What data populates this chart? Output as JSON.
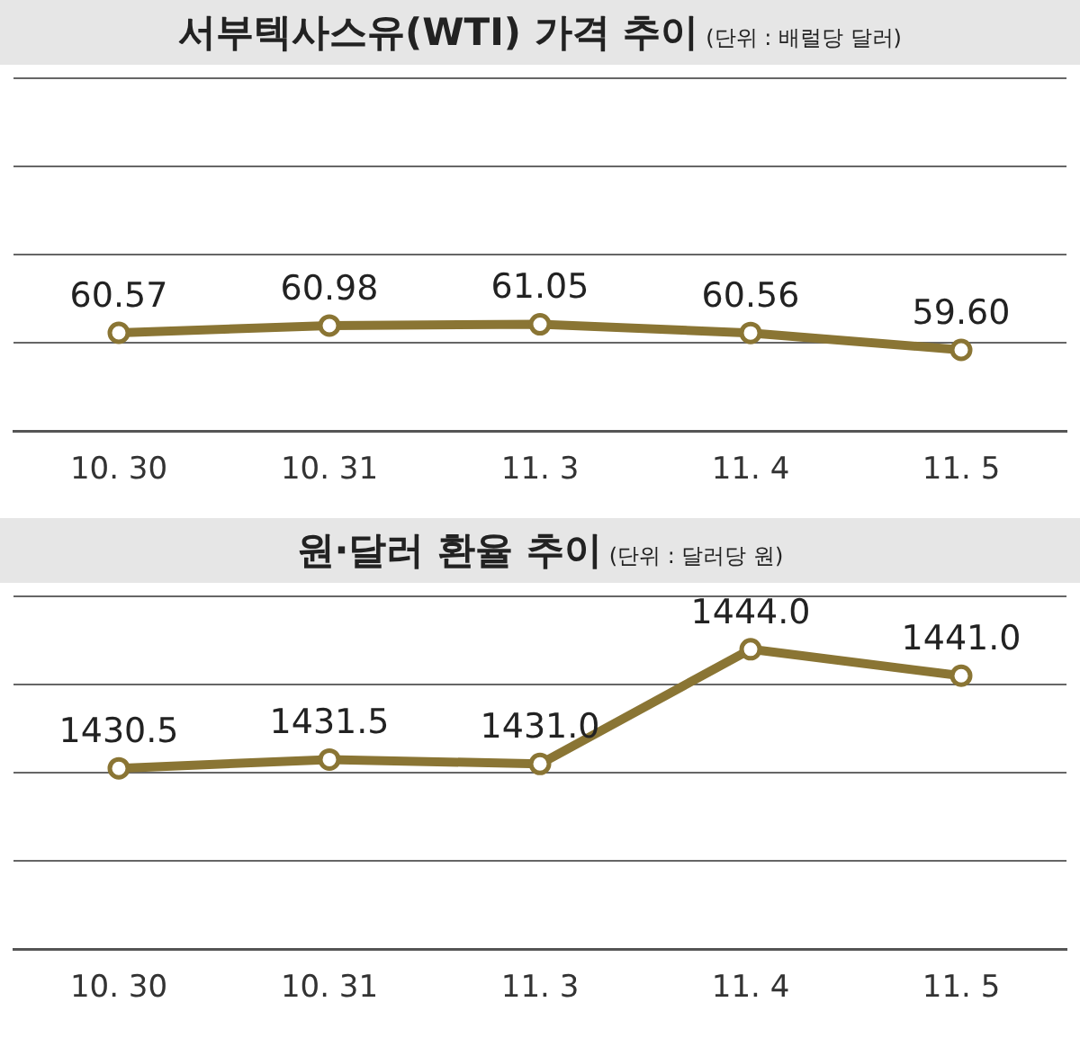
{
  "chart_data": [
    {
      "type": "line",
      "title": "서부텍사스유(WTI) 가격 추이",
      "subtitle": "(단위 : 배럴당 달러)",
      "categories": [
        "10. 30",
        "10. 31",
        "11. 3",
        "11. 4",
        "11. 5"
      ],
      "series": [
        {
          "color": "#8a7534",
          "values": [
            60.57,
            60.98,
            61.05,
            60.56,
            59.6
          ],
          "value_labels": [
            "60.57",
            "60.98",
            "61.05",
            "60.56",
            "59.60"
          ]
        }
      ],
      "ylim": [
        55,
        75
      ],
      "yticks": [
        {
          "value": 55,
          "label": null
        },
        {
          "value": 60,
          "label": null
        },
        {
          "value": 65,
          "label": null
        },
        {
          "value": 70,
          "label": null
        },
        {
          "value": 75,
          "label": null
        }
      ],
      "grid": "y",
      "tick_labels": "x",
      "marker": "circle",
      "line_style": "solid",
      "legend": false
    },
    {
      "type": "line",
      "title": "원·달러 환율 추이",
      "subtitle": "(단위 : 달러당 원)",
      "categories": [
        "10. 30",
        "10. 31",
        "11. 3",
        "11. 4",
        "11. 5"
      ],
      "series": [
        {
          "color": "#8a7534",
          "values": [
            1430.5,
            1431.5,
            1431.0,
            1444.0,
            1441.0
          ],
          "value_labels": [
            "1430.5",
            "1431.5",
            "1431.0",
            "1444.0",
            "1441.0"
          ]
        }
      ],
      "ylim": [
        1410,
        1450
      ],
      "yticks": [
        {
          "value": 1410,
          "label": null
        },
        {
          "value": 1420,
          "label": null
        },
        {
          "value": 1430,
          "label": null
        },
        {
          "value": 1440,
          "label": null
        },
        {
          "value": 1450,
          "label": null
        }
      ],
      "grid": "y",
      "tick_labels": "x",
      "marker": "circle",
      "line_style": "solid",
      "legend": false
    }
  ]
}
